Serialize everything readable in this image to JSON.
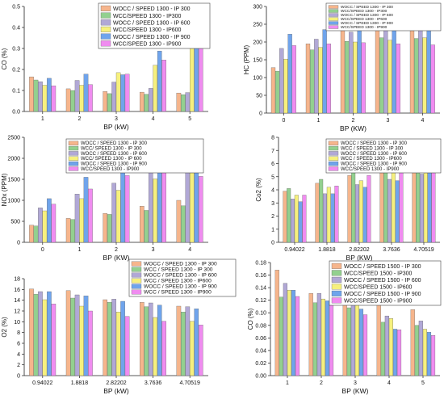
{
  "palette": {
    "orange": "#f6b58c",
    "green": "#93d08f",
    "purple": "#b1a8d6",
    "yellow": "#f6f07e",
    "blue": "#6fa4ec",
    "pink": "#f08cf0"
  },
  "chart_data": [
    {
      "type": "bar",
      "xlabel": "BP (kW)",
      "ylabel": "CO (%)",
      "ylim": [
        0.0,
        0.5
      ],
      "yticks": [
        0.0,
        0.1,
        0.2,
        0.3,
        0.4,
        0.5
      ],
      "ytick_labels": [
        "0.0",
        "0.1",
        "0.2",
        "0.3",
        "0.4",
        "0.5"
      ],
      "legend_position": "top-right",
      "categories": [
        "1",
        "2",
        "3",
        "4",
        "5"
      ],
      "series": [
        {
          "name": "WOCC / SPEED 1300 - IP 300",
          "color_key": "orange",
          "values": [
            0.165,
            0.108,
            0.095,
            0.092,
            0.088
          ]
        },
        {
          "name": "WCC/SPEED 1300 - IP300",
          "color_key": "green",
          "values": [
            0.15,
            0.1,
            0.085,
            0.082,
            0.08
          ]
        },
        {
          "name": "WOCC / SPEED 1300 - IP 600",
          "color_key": "purple",
          "values": [
            0.142,
            0.148,
            0.14,
            0.11,
            0.09
          ]
        },
        {
          "name": "WCC/SPEED 1300 - IP600",
          "color_key": "yellow",
          "values": [
            0.125,
            0.125,
            0.185,
            0.22,
            0.335
          ]
        },
        {
          "name": "WOCC / SPEED 1300 - IP 900",
          "color_key": "blue",
          "values": [
            0.158,
            0.178,
            0.175,
            0.288,
            0.338
          ]
        },
        {
          "name": "WCC/SPEED 1300 - IP900",
          "color_key": "pink",
          "values": [
            0.122,
            0.128,
            0.178,
            0.245,
            0.445
          ]
        }
      ]
    },
    {
      "type": "bar",
      "xlabel": "BP (KW)",
      "ylabel": "HC (PPM)",
      "ylim": [
        0,
        300
      ],
      "yticks": [
        0,
        50,
        100,
        150,
        200,
        250,
        300
      ],
      "ytick_labels": [
        "0",
        "50",
        "100",
        "150",
        "200",
        "250",
        "300"
      ],
      "legend_position": "top-right",
      "categories": [
        "0",
        "1",
        "2",
        "3",
        "4"
      ],
      "series": [
        {
          "name": "WOCC / SPEED 1300 - IP 300",
          "color_key": "orange",
          "values": [
            128,
            195,
            235,
            245,
            255
          ]
        },
        {
          "name": "WCC/SPEED 1300 - IP300",
          "color_key": "green",
          "values": [
            118,
            178,
            202,
            212,
            210
          ]
        },
        {
          "name": "WOCC / SPEED 1300 - IP 600",
          "color_key": "purple",
          "values": [
            182,
            208,
            228,
            238,
            265
          ]
        },
        {
          "name": "WCC/SPEED 1300 - IP600",
          "color_key": "yellow",
          "values": [
            152,
            185,
            200,
            205,
            212
          ]
        },
        {
          "name": "WOCC / SPEED 1300 - IP 900",
          "color_key": "blue",
          "values": [
            222,
            235,
            242,
            252,
            256
          ]
        },
        {
          "name": "WCC/SPEED 1300 - IP900",
          "color_key": "pink",
          "values": [
            190,
            195,
            198,
            195,
            192
          ]
        }
      ]
    },
    {
      "type": "bar",
      "xlabel": "BP (KW)",
      "ylabel": "NOx (PPM)",
      "ylim": [
        0,
        2500
      ],
      "yticks": [
        0,
        500,
        1000,
        1500,
        2000,
        2500
      ],
      "ytick_labels": [
        "0",
        "500",
        "1000",
        "1500",
        "2000",
        "2500"
      ],
      "legend_position": "top-right",
      "categories": [
        "0",
        "1",
        "2",
        "3",
        "4"
      ],
      "series": [
        {
          "name": "WOCC / SPEED 1300 - IP 300",
          "color_key": "orange",
          "values": [
            410,
            570,
            690,
            860,
            1000
          ]
        },
        {
          "name": "WCC/ SPEED 1300 - IP 300",
          "color_key": "green",
          "values": [
            390,
            545,
            665,
            760,
            870
          ]
        },
        {
          "name": "WOCC / SPEED 1300 - IP 600",
          "color_key": "purple",
          "values": [
            820,
            1150,
            1410,
            1800,
            2200
          ]
        },
        {
          "name": "WCC/ SPEED 1300 - IP 600",
          "color_key": "yellow",
          "values": [
            750,
            1040,
            1240,
            1510,
            1810
          ]
        },
        {
          "name": "WOCC / SPEED 1300 - IP 900",
          "color_key": "blue",
          "values": [
            1040,
            1550,
            2060,
            2380,
            2230
          ]
        },
        {
          "name": "WCC/SPEED 1300 - IP900",
          "color_key": "pink",
          "values": [
            910,
            1270,
            1590,
            1740,
            1570
          ]
        }
      ]
    },
    {
      "type": "bar",
      "xlabel": "BP (KW)",
      "ylabel": "Co2 (%)",
      "ylim": [
        0,
        8
      ],
      "yticks": [
        0,
        1,
        2,
        3,
        4,
        5,
        6,
        7,
        8
      ],
      "ytick_labels": [
        "0",
        "1",
        "2",
        "3",
        "4",
        "5",
        "6",
        "7",
        "8"
      ],
      "legend_position": "top-right",
      "categories": [
        "0.94022",
        "1.8818",
        "2.82202",
        "3.7636",
        "4.70519"
      ],
      "series": [
        {
          "name": "WOCC / SPEED 1300 - IP 300",
          "color_key": "orange",
          "values": [
            3.9,
            4.5,
            5.1,
            5.8,
            6.4
          ]
        },
        {
          "name": "WCC / SPEED 1300 - IP 300",
          "color_key": "green",
          "values": [
            4.1,
            4.8,
            5.7,
            6.3,
            7.1
          ]
        },
        {
          "name": "WOCC / SPEED 1300 - IP 600",
          "color_key": "purple",
          "values": [
            3.3,
            3.7,
            4.4,
            4.8,
            5.2
          ]
        },
        {
          "name": "WCC / SPEED 1300 - IP600",
          "color_key": "yellow",
          "values": [
            3.6,
            4.2,
            4.7,
            5.3,
            6.1
          ]
        },
        {
          "name": "WOCC / SPEED 1300 - IP 900",
          "color_key": "blue",
          "values": [
            3.1,
            3.7,
            4.2,
            4.7,
            5.6
          ]
        },
        {
          "name": "WCC/SPEED 1300 - IP900",
          "color_key": "pink",
          "values": [
            3.6,
            4.3,
            5.1,
            5.8,
            6.8
          ]
        }
      ]
    },
    {
      "type": "bar",
      "xlabel": "BP (kW)",
      "ylabel": "O2 (%)",
      "ylim": [
        0,
        18
      ],
      "yticks": [
        0,
        2,
        4,
        6,
        8,
        10,
        12,
        14,
        16,
        18
      ],
      "ytick_labels": [
        "0",
        "2",
        "4",
        "6",
        "8",
        "10",
        "12",
        "14",
        "16",
        "18"
      ],
      "legend_position": "top-right",
      "categories": [
        "0.94022",
        "1.8818",
        "2.82202",
        "3.7636",
        "4.70519"
      ],
      "series": [
        {
          "name": "WOCC / SPEED 1300 - IP 300",
          "color_key": "orange",
          "values": [
            16.1,
            15.8,
            14.1,
            13.6,
            12.9
          ]
        },
        {
          "name": "WCC / SPEED 1300 - IP 300",
          "color_key": "green",
          "values": [
            15.1,
            14.4,
            13.6,
            12.8,
            11.8
          ]
        },
        {
          "name": "WOCC / SPEED 1300 - IP 600",
          "color_key": "purple",
          "values": [
            15.6,
            15.0,
            14.2,
            13.5,
            12.8
          ]
        },
        {
          "name": "WCC / SPEED 1300 - IP600",
          "color_key": "yellow",
          "values": [
            14.1,
            12.9,
            11.8,
            10.8,
            10.1
          ]
        },
        {
          "name": "WOCC / SPEED 1300 - IP 900",
          "color_key": "blue",
          "values": [
            15.6,
            14.8,
            13.8,
            13.1,
            12.4
          ]
        },
        {
          "name": "WCC / SPEED 1300 - IP900",
          "color_key": "pink",
          "values": [
            13.3,
            12.0,
            11.0,
            10.1,
            9.4
          ]
        }
      ]
    },
    {
      "type": "bar",
      "xlabel": "BP (KW)",
      "ylabel": "CO (%)",
      "ylim": [
        0.0,
        0.18
      ],
      "yticks": [
        0.0,
        0.02,
        0.04,
        0.06,
        0.08,
        0.1,
        0.12,
        0.14,
        0.16,
        0.18
      ],
      "ytick_labels": [
        "0.00",
        "0.02",
        "0.04",
        "0.06",
        "0.08",
        "0.10",
        "0.12",
        "0.14",
        "0.16",
        "0.18"
      ],
      "legend_position": "top-right",
      "categories": [
        "1",
        "2",
        "3",
        "4",
        "5"
      ],
      "series": [
        {
          "name": "WOCC / SPEED 1500 - IP 300",
          "color_key": "orange",
          "values": [
            0.168,
            0.131,
            0.118,
            0.113,
            0.105
          ]
        },
        {
          "name": "WCC/SPEED 1500 - IP300",
          "color_key": "green",
          "values": [
            0.125,
            0.116,
            0.108,
            0.085,
            0.08
          ]
        },
        {
          "name": "WOCC / SPEED 1500 - IP 600",
          "color_key": "purple",
          "values": [
            0.147,
            0.131,
            0.118,
            0.095,
            0.087
          ]
        },
        {
          "name": "WCC/SPEED 1500 - IP600",
          "color_key": "yellow",
          "values": [
            0.136,
            0.122,
            0.118,
            0.091,
            0.074
          ]
        },
        {
          "name": "WOCC / SPEED 1500 - IP 900",
          "color_key": "blue",
          "values": [
            0.136,
            0.119,
            0.106,
            0.074,
            0.069
          ]
        },
        {
          "name": "WCC/SPEED 1500 - IP900",
          "color_key": "pink",
          "values": [
            0.126,
            0.115,
            0.097,
            0.073,
            0.064
          ]
        }
      ]
    }
  ]
}
